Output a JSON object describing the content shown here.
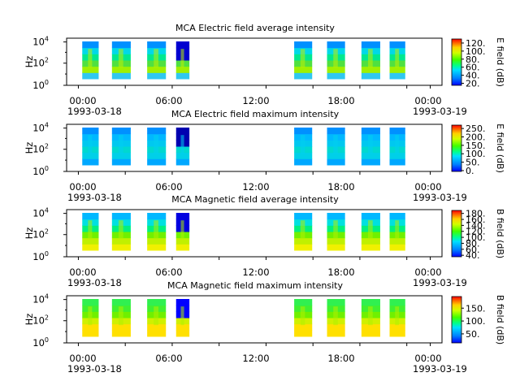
{
  "chart_data": [
    {
      "type": "heatmap",
      "title": "MCA  Electric field average intensity",
      "ylabel": "Hz",
      "yscale": "log",
      "ytick_labels": [
        {
          "base": "10",
          "exp": "0"
        },
        {
          "base": "10",
          "exp": "2"
        },
        {
          "base": "10",
          "exp": "4"
        }
      ],
      "xtick_labels": [
        "00:00",
        "06:00",
        "12:00",
        "18:00",
        "00:00"
      ],
      "x_date_labels": [
        "1993-03-18",
        "1993-03-19"
      ],
      "colorbar": {
        "label": "E field (dB)",
        "ticks": [
          "120.",
          "100.",
          "80.",
          "60.",
          "40.",
          "20."
        ],
        "range": [
          15,
          130
        ]
      },
      "segments_hours": [
        [
          0.5,
          2.6
        ],
        [
          4.3,
          6.7
        ],
        [
          8.8,
          11.2
        ],
        [
          12.5,
          14.2
        ],
        [
          27.6,
          29.9
        ],
        [
          31.8,
          34.1
        ],
        [
          36.2,
          38.6
        ],
        [
          39.8,
          41.8
        ]
      ]
    },
    {
      "type": "heatmap",
      "title": "MCA  Electric field maximum intensity",
      "ylabel": "Hz",
      "yscale": "log",
      "ytick_labels": [
        {
          "base": "10",
          "exp": "0"
        },
        {
          "base": "10",
          "exp": "2"
        },
        {
          "base": "10",
          "exp": "4"
        }
      ],
      "xtick_labels": [
        "00:00",
        "06:00",
        "12:00",
        "18:00",
        "00:00"
      ],
      "x_date_labels": [
        "1993-03-18",
        "1993-03-19"
      ],
      "colorbar": {
        "label": "E field (dB)",
        "ticks": [
          "250.",
          "200.",
          "150.",
          "100.",
          "50.",
          "0."
        ],
        "range": [
          -5,
          270
        ]
      },
      "segments_hours": [
        [
          0.5,
          2.6
        ],
        [
          4.3,
          6.7
        ],
        [
          8.8,
          11.2
        ],
        [
          12.5,
          14.2
        ],
        [
          27.6,
          29.9
        ],
        [
          31.8,
          34.1
        ],
        [
          36.2,
          38.6
        ],
        [
          39.8,
          41.8
        ]
      ]
    },
    {
      "type": "heatmap",
      "title": "MCA  Magnetic field average intensity",
      "ylabel": "Hz",
      "yscale": "log",
      "ytick_labels": [
        {
          "base": "10",
          "exp": "0"
        },
        {
          "base": "10",
          "exp": "2"
        },
        {
          "base": "10",
          "exp": "4"
        }
      ],
      "xtick_labels": [
        "00:00",
        "06:00",
        "12:00",
        "18:00",
        "00:00"
      ],
      "x_date_labels": [
        "1993-03-18",
        "1993-03-19"
      ],
      "colorbar": {
        "label": "B field (dB)",
        "ticks": [
          "180.",
          "160.",
          "140.",
          "120.",
          "100.",
          "80.",
          "60.",
          "40."
        ],
        "range": [
          35,
          190
        ]
      },
      "segments_hours": [
        [
          0.5,
          2.6
        ],
        [
          4.3,
          6.7
        ],
        [
          8.8,
          11.2
        ],
        [
          12.5,
          14.2
        ],
        [
          27.6,
          29.9
        ],
        [
          31.8,
          34.1
        ],
        [
          36.2,
          38.6
        ],
        [
          39.8,
          41.8
        ]
      ]
    },
    {
      "type": "heatmap",
      "title": "MCA  Magnetic field maximum intensity",
      "ylabel": "Hz",
      "yscale": "log",
      "ytick_labels": [
        {
          "base": "10",
          "exp": "0"
        },
        {
          "base": "10",
          "exp": "2"
        },
        {
          "base": "10",
          "exp": "4"
        }
      ],
      "xtick_labels": [
        "00:00",
        "06:00",
        "12:00",
        "18:00",
        "00:00"
      ],
      "x_date_labels": [
        "1993-03-18",
        "1993-03-19"
      ],
      "colorbar": {
        "label": "B field (dB)",
        "ticks": [
          "150.",
          "100.",
          "50."
        ],
        "range": [
          15,
          195
        ]
      },
      "segments_hours": [
        [
          0.5,
          2.6
        ],
        [
          4.3,
          6.7
        ],
        [
          8.8,
          11.2
        ],
        [
          12.5,
          14.2
        ],
        [
          27.6,
          29.9
        ],
        [
          31.8,
          34.1
        ],
        [
          36.2,
          38.6
        ],
        [
          39.8,
          41.8
        ]
      ]
    }
  ]
}
